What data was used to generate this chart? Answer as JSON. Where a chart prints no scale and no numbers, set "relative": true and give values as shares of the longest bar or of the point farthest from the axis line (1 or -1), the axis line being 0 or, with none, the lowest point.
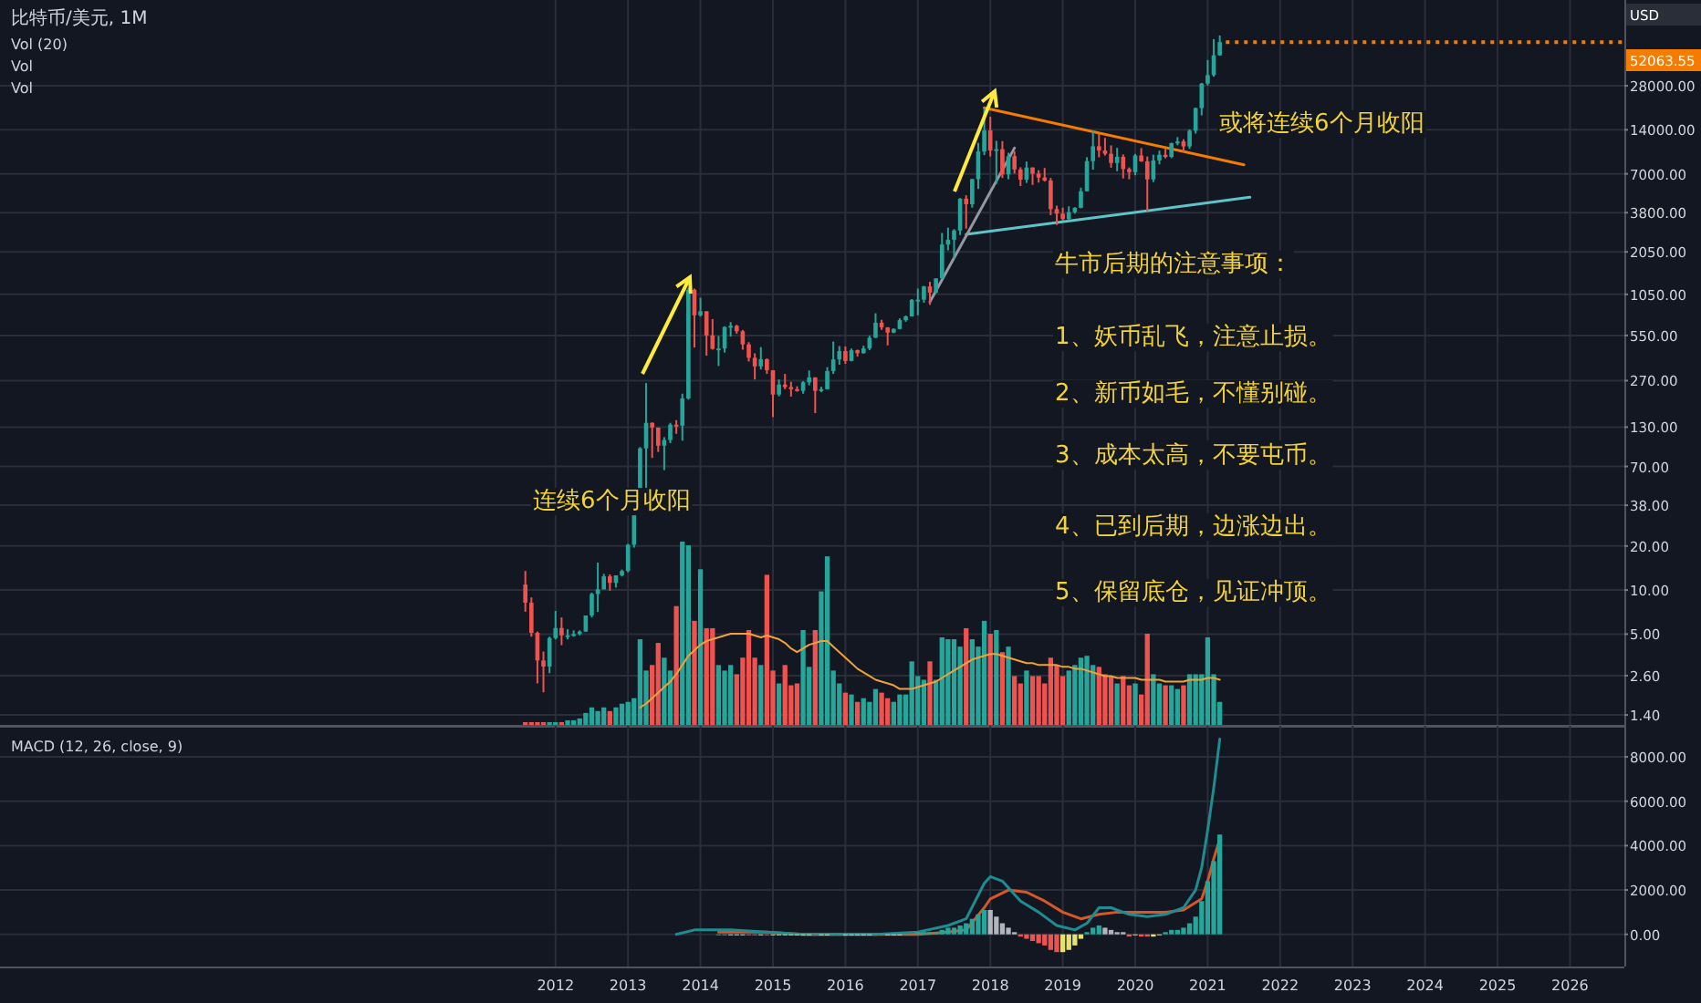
{
  "chart_data": [
    {
      "type": "candlestick",
      "title": "比特币/美元, 1M",
      "log": true,
      "grid": true,
      "tick_labels": "y",
      "xlim": [
        "2004-05",
        "2026-10"
      ],
      "xticks": [
        {
          "value": "2012",
          "label": null
        },
        {
          "value": "2013",
          "label": null
        },
        {
          "value": "2014",
          "label": null
        },
        {
          "value": "2015",
          "label": null
        },
        {
          "value": "2016",
          "label": null
        },
        {
          "value": "2017",
          "label": null
        },
        {
          "value": "2018",
          "label": null
        },
        {
          "value": "2019",
          "label": null
        },
        {
          "value": "2020",
          "label": null
        },
        {
          "value": "2021",
          "label": null
        },
        {
          "value": "2022",
          "label": null
        },
        {
          "value": "2023",
          "label": null
        },
        {
          "value": "2024",
          "label": null
        },
        {
          "value": "2025",
          "label": null
        },
        {
          "value": "2026",
          "label": null
        }
      ],
      "ylim": [
        1.18,
        108000
      ],
      "yticks": [
        {
          "value": 1.4,
          "label": "1.40"
        },
        {
          "value": 2.6,
          "label": "2.60"
        },
        {
          "value": 5,
          "label": "5.00"
        },
        {
          "value": 10,
          "label": "10.00"
        },
        {
          "value": 20,
          "label": "20.00"
        },
        {
          "value": 38,
          "label": "38.00"
        },
        {
          "value": 70,
          "label": "70.00"
        },
        {
          "value": 130,
          "label": "130.00"
        },
        {
          "value": 270,
          "label": "270.00"
        },
        {
          "value": 550,
          "label": "550.00"
        },
        {
          "value": 1050,
          "label": "1050.00"
        },
        {
          "value": 2050,
          "label": "2050.00"
        },
        {
          "value": 3800,
          "label": "3800.00"
        },
        {
          "value": 7000,
          "label": "7000.00"
        },
        {
          "value": 14000,
          "label": "14000.00"
        },
        {
          "value": 28000,
          "label": "28000.00"
        }
      ],
      "x": [
        "2011-08",
        "2011-09",
        "2011-10",
        "2011-11",
        "2011-12",
        "2012-01",
        "2012-02",
        "2012-03",
        "2012-04",
        "2012-05",
        "2012-06",
        "2012-07",
        "2012-08",
        "2012-09",
        "2012-10",
        "2012-11",
        "2012-12",
        "2013-01",
        "2013-02",
        "2013-03",
        "2013-04",
        "2013-05",
        "2013-06",
        "2013-07",
        "2013-08",
        "2013-09",
        "2013-10",
        "2013-11",
        "2013-12",
        "2014-01",
        "2014-02",
        "2014-03",
        "2014-04",
        "2014-05",
        "2014-06",
        "2014-07",
        "2014-08",
        "2014-09",
        "2014-10",
        "2014-11",
        "2014-12",
        "2015-01",
        "2015-02",
        "2015-03",
        "2015-04",
        "2015-05",
        "2015-06",
        "2015-07",
        "2015-08",
        "2015-09",
        "2015-10",
        "2015-11",
        "2015-12",
        "2016-01",
        "2016-02",
        "2016-03",
        "2016-04",
        "2016-05",
        "2016-06",
        "2016-07",
        "2016-08",
        "2016-09",
        "2016-10",
        "2016-11",
        "2016-12",
        "2017-01",
        "2017-02",
        "2017-03",
        "2017-04",
        "2017-05",
        "2017-06",
        "2017-07",
        "2017-08",
        "2017-09",
        "2017-10",
        "2017-11",
        "2017-12",
        "2018-01",
        "2018-02",
        "2018-03",
        "2018-04",
        "2018-05",
        "2018-06",
        "2018-07",
        "2018-08",
        "2018-09",
        "2018-10",
        "2018-11",
        "2018-12",
        "2019-01",
        "2019-02",
        "2019-03",
        "2019-04",
        "2019-05",
        "2019-06",
        "2019-07",
        "2019-08",
        "2019-09",
        "2019-10",
        "2019-11",
        "2019-12",
        "2020-01",
        "2020-02",
        "2020-03",
        "2020-04",
        "2020-05",
        "2020-06",
        "2020-07",
        "2020-08",
        "2020-09",
        "2020-10",
        "2020-11",
        "2020-12",
        "2021-01",
        "2021-02",
        "2021-03"
      ],
      "ohlc": [
        [
          10.9,
          13.5,
          7.1,
          8.2
        ],
        [
          8.2,
          8.9,
          4.8,
          5.1
        ],
        [
          5.1,
          5.2,
          2.3,
          3.3
        ],
        [
          3.3,
          3.8,
          2.0,
          3.0
        ],
        [
          3.0,
          4.8,
          2.7,
          4.7
        ],
        [
          4.7,
          7.2,
          4.6,
          5.5
        ],
        [
          5.5,
          6.5,
          4.2,
          4.9
        ],
        [
          4.9,
          5.4,
          4.6,
          4.9
        ],
        [
          4.9,
          5.3,
          4.8,
          5.0
        ],
        [
          5.0,
          5.3,
          4.9,
          5.2
        ],
        [
          5.2,
          6.7,
          5.2,
          6.7
        ],
        [
          6.7,
          9.6,
          6.5,
          9.4
        ],
        [
          9.4,
          15.4,
          7.1,
          10.1
        ],
        [
          10.1,
          12.9,
          10.1,
          12.4
        ],
        [
          12.4,
          12.8,
          9.9,
          11.2
        ],
        [
          11.2,
          12.6,
          10.4,
          12.6
        ],
        [
          12.6,
          13.8,
          12.4,
          13.5
        ],
        [
          13.5,
          20.7,
          13.2,
          20.4
        ],
        [
          20.4,
          33.5,
          19.5,
          33.4
        ],
        [
          33.4,
          95,
          33,
          93
        ],
        [
          93,
          260,
          50,
          139
        ],
        [
          139,
          140,
          80,
          129
        ],
        [
          129,
          129,
          88,
          97
        ],
        [
          97,
          111,
          66,
          106
        ],
        [
          106,
          139,
          101,
          135
        ],
        [
          135,
          145,
          117,
          133
        ],
        [
          133,
          220,
          105,
          204
        ],
        [
          204,
          1163,
          200,
          1127
        ],
        [
          1127,
          1150,
          455,
          755
        ],
        [
          755,
          995,
          740,
          805
        ],
        [
          805,
          805,
          400,
          550
        ],
        [
          550,
          712,
          440,
          445
        ],
        [
          445,
          545,
          340,
          448
        ],
        [
          448,
          635,
          420,
          628
        ],
        [
          628,
          678,
          540,
          640
        ],
        [
          640,
          650,
          565,
          587
        ],
        [
          587,
          600,
          440,
          478
        ],
        [
          478,
          495,
          365,
          387
        ],
        [
          387,
          415,
          275,
          338
        ],
        [
          338,
          458,
          322,
          378
        ],
        [
          378,
          383,
          300,
          318
        ],
        [
          318,
          318,
          152,
          217
        ],
        [
          217,
          275,
          211,
          254
        ],
        [
          254,
          300,
          236,
          244
        ],
        [
          244,
          265,
          210,
          236
        ],
        [
          236,
          247,
          227,
          230
        ],
        [
          230,
          268,
          220,
          263
        ],
        [
          263,
          317,
          251,
          284
        ],
        [
          284,
          285,
          162,
          230
        ],
        [
          230,
          245,
          225,
          236
        ],
        [
          236,
          334,
          235,
          314
        ],
        [
          314,
          500,
          300,
          377
        ],
        [
          377,
          466,
          347,
          430
        ],
        [
          430,
          462,
          352,
          368
        ],
        [
          368,
          448,
          366,
          436
        ],
        [
          436,
          440,
          394,
          416
        ],
        [
          416,
          468,
          413,
          448
        ],
        [
          448,
          548,
          436,
          530
        ],
        [
          530,
          780,
          529,
          672
        ],
        [
          672,
          704,
          600,
          624
        ],
        [
          624,
          627,
          470,
          575
        ],
        [
          575,
          615,
          570,
          609
        ],
        [
          609,
          720,
          605,
          700
        ],
        [
          700,
          753,
          682,
          742
        ],
        [
          742,
          975,
          740,
          963
        ],
        [
          963,
          1150,
          755,
          966
        ],
        [
          966,
          1200,
          920,
          1190
        ],
        [
          1190,
          1280,
          890,
          1080
        ],
        [
          1080,
          1350,
          1065,
          1350
        ],
        [
          1350,
          2760,
          1345,
          2300
        ],
        [
          2300,
          3000,
          2100,
          2480
        ],
        [
          2480,
          2930,
          1840,
          2870
        ],
        [
          2870,
          4780,
          2670,
          4735
        ],
        [
          4735,
          5000,
          2950,
          4340
        ],
        [
          4340,
          6470,
          4110,
          6440
        ],
        [
          6440,
          11400,
          5520,
          9950
        ],
        [
          9950,
          19666,
          9400,
          13860
        ],
        [
          13860,
          17180,
          9200,
          10110
        ],
        [
          10110,
          11780,
          5970,
          10320
        ],
        [
          10320,
          11710,
          6560,
          6940
        ],
        [
          6940,
          9760,
          6430,
          9240
        ],
        [
          9240,
          9990,
          7030,
          7500
        ],
        [
          7500,
          7760,
          5780,
          6390
        ],
        [
          6390,
          8500,
          6070,
          7730
        ],
        [
          7730,
          7760,
          5880,
          7010
        ],
        [
          7010,
          7410,
          6100,
          6610
        ],
        [
          6610,
          7680,
          6200,
          6300
        ],
        [
          6300,
          6560,
          3650,
          4020
        ],
        [
          4020,
          4240,
          3130,
          3740
        ],
        [
          3740,
          4110,
          3350,
          3440
        ],
        [
          3440,
          4200,
          3380,
          3830
        ],
        [
          3830,
          4140,
          3740,
          4100
        ],
        [
          4100,
          5630,
          4070,
          5320
        ],
        [
          5320,
          9090,
          5320,
          8550
        ],
        [
          8550,
          13880,
          7470,
          10800
        ],
        [
          10800,
          13200,
          9070,
          10100
        ],
        [
          10100,
          12330,
          9330,
          9600
        ],
        [
          9600,
          10950,
          7710,
          8300
        ],
        [
          8300,
          10540,
          7300,
          9150
        ],
        [
          9150,
          9510,
          6520,
          7550
        ],
        [
          7550,
          7740,
          6430,
          7190
        ],
        [
          7190,
          9580,
          6850,
          9350
        ],
        [
          9350,
          10500,
          8450,
          8520
        ],
        [
          8520,
          9190,
          3850,
          6410
        ],
        [
          6410,
          9470,
          6150,
          8630
        ],
        [
          8630,
          10080,
          8130,
          9450
        ],
        [
          9450,
          10380,
          8930,
          9140
        ],
        [
          9140,
          11440,
          8970,
          11350
        ],
        [
          11350,
          12470,
          10990,
          11650
        ],
        [
          11650,
          12070,
          9880,
          10780
        ],
        [
          10780,
          14100,
          10370,
          13800
        ],
        [
          13800,
          19870,
          13200,
          19700
        ],
        [
          19700,
          29300,
          17570,
          28990
        ],
        [
          28990,
          41950,
          28130,
          33110
        ],
        [
          33110,
          58350,
          32300,
          45240
        ],
        [
          45240,
          61780,
          44950,
          55700
        ]
      ],
      "colors": [
        "#ef5350",
        "#ef5350",
        "#ef5350",
        "#ef5350",
        "#26a69a",
        "#26a69a",
        "#ef5350",
        "#26a69a",
        "#26a69a",
        "#26a69a",
        "#26a69a",
        "#26a69a",
        "#26a69a",
        "#26a69a",
        "#ef5350",
        "#26a69a",
        "#26a69a",
        "#26a69a",
        "#26a69a",
        "#26a69a",
        "#26a69a",
        "#ef5350",
        "#ef5350",
        "#26a69a",
        "#26a69a",
        "#ef5350",
        "#26a69a",
        "#26a69a",
        "#ef5350",
        "#26a69a",
        "#ef5350",
        "#ef5350",
        "#26a69a",
        "#26a69a",
        "#26a69a",
        "#ef5350",
        "#ef5350",
        "#ef5350",
        "#ef5350",
        "#26a69a",
        "#ef5350",
        "#ef5350",
        "#26a69a",
        "#ef5350",
        "#ef5350",
        "#ef5350",
        "#26a69a",
        "#26a69a",
        "#ef5350",
        "#26a69a",
        "#26a69a",
        "#26a69a",
        "#26a69a",
        "#ef5350",
        "#26a69a",
        "#ef5350",
        "#26a69a",
        "#26a69a",
        "#26a69a",
        "#ef5350",
        "#ef5350",
        "#26a69a",
        "#26a69a",
        "#26a69a",
        "#26a69a",
        "#26a69a",
        "#26a69a",
        "#ef5350",
        "#26a69a",
        "#26a69a",
        "#26a69a",
        "#26a69a",
        "#26a69a",
        "#ef5350",
        "#26a69a",
        "#26a69a",
        "#26a69a",
        "#ef5350",
        "#26a69a",
        "#ef5350",
        "#26a69a",
        "#ef5350",
        "#ef5350",
        "#26a69a",
        "#ef5350",
        "#ef5350",
        "#ef5350",
        "#ef5350",
        "#ef5350",
        "#ef5350",
        "#26a69a",
        "#26a69a",
        "#26a69a",
        "#26a69a",
        "#26a69a",
        "#ef5350",
        "#ef5350",
        "#ef5350",
        "#26a69a",
        "#ef5350",
        "#ef5350",
        "#26a69a",
        "#ef5350",
        "#ef5350",
        "#26a69a",
        "#26a69a",
        "#ef5350",
        "#26a69a",
        "#26a69a",
        "#ef5350",
        "#26a69a",
        "#26a69a",
        "#26a69a",
        "#26a69a",
        "#26a69a",
        "#26a69a"
      ],
      "series": [
        {
          "type": "line",
          "color": "#f57c00",
          "x": [
            "2017-12",
            "2021-07"
          ],
          "values": [
            19800,
            8070
          ]
        },
        {
          "type": "line",
          "color": "#5fc4c8",
          "x": [
            "2017-09",
            "2021-08"
          ],
          "values": [
            2700,
            4840
          ]
        },
        {
          "type": "line",
          "color": "#9598a1",
          "x": [
            "2017-03",
            "2018-05"
          ],
          "values": [
            935,
            10500
          ]
        }
      ],
      "ref_lines": [
        {
          "axis": "y",
          "value": 55700,
          "color": "#f57c00",
          "line_style": "dotted"
        }
      ],
      "annotations": [
        "连续6个月收阳",
        "或将连续6个月收阳",
        "牛市后期的注意事项：",
        "1、妖币乱飞，注意止损。",
        "2、新币如毛，不懂别碰。",
        "3、成本太高，不要屯币。",
        "4、已到后期，边涨边出。",
        "5、保留底仓，见证冲顶。",
        "USD",
        "52063.55"
      ]
    },
    {
      "type": "bar",
      "relative": true,
      "tick_labels": false,
      "xlim": [
        "2004-05",
        "2026-10"
      ],
      "x": [
        "2011-08",
        "2011-09",
        "2011-10",
        "2011-11",
        "2011-12",
        "2012-01",
        "2012-02",
        "2012-03",
        "2012-04",
        "2012-05",
        "2012-06",
        "2012-07",
        "2012-08",
        "2012-09",
        "2012-10",
        "2012-11",
        "2012-12",
        "2013-01",
        "2013-02",
        "2013-03",
        "2013-04",
        "2013-05",
        "2013-06",
        "2013-07",
        "2013-08",
        "2013-09",
        "2013-10",
        "2013-11",
        "2013-12",
        "2014-01",
        "2014-02",
        "2014-03",
        "2014-04",
        "2014-05",
        "2014-06",
        "2014-07",
        "2014-08",
        "2014-09",
        "2014-10",
        "2014-11",
        "2014-12",
        "2015-01",
        "2015-02",
        "2015-03",
        "2015-04",
        "2015-05",
        "2015-06",
        "2015-07",
        "2015-08",
        "2015-09",
        "2015-10",
        "2015-11",
        "2015-12",
        "2016-01",
        "2016-02",
        "2016-03",
        "2016-04",
        "2016-05",
        "2016-06",
        "2016-07",
        "2016-08",
        "2016-09",
        "2016-10",
        "2016-11",
        "2016-12",
        "2017-01",
        "2017-02",
        "2017-03",
        "2017-04",
        "2017-05",
        "2017-06",
        "2017-07",
        "2017-08",
        "2017-09",
        "2017-10",
        "2017-11",
        "2017-12",
        "2018-01",
        "2018-02",
        "2018-03",
        "2018-04",
        "2018-05",
        "2018-06",
        "2018-07",
        "2018-08",
        "2018-09",
        "2018-10",
        "2018-11",
        "2018-12",
        "2019-01",
        "2019-02",
        "2019-03",
        "2019-04",
        "2019-05",
        "2019-06",
        "2019-07",
        "2019-08",
        "2019-09",
        "2019-10",
        "2019-11",
        "2019-12",
        "2020-01",
        "2020-02",
        "2020-03",
        "2020-04",
        "2020-05",
        "2020-06",
        "2020-07",
        "2020-08",
        "2020-09",
        "2020-10",
        "2020-11",
        "2020-12",
        "2021-01",
        "2021-02",
        "2021-03"
      ],
      "series": [
        {
          "type": "bar",
          "values": [
            0.02,
            0.02,
            0.02,
            0.02,
            0.02,
            0.02,
            0.02,
            0.03,
            0.03,
            0.04,
            0.07,
            0.1,
            0.08,
            0.1,
            0.08,
            0.1,
            0.12,
            0.13,
            0.15,
            0.47,
            0.3,
            0.33,
            0.45,
            0.37,
            0.3,
            0.65,
            1,
            0.98,
            0.57,
            0.85,
            0.53,
            0.53,
            0.33,
            0.3,
            0.33,
            0.28,
            0.37,
            0.52,
            0.37,
            0.33,
            0.82,
            0.3,
            0.23,
            0.33,
            0.22,
            0.23,
            0.52,
            0.32,
            0.52,
            0.73,
            0.92,
            0.3,
            0.23,
            0.18,
            0.17,
            0.13,
            0.15,
            0.13,
            0.2,
            0.18,
            0.15,
            0.13,
            0.17,
            0.17,
            0.35,
            0.27,
            0.25,
            0.35,
            0.25,
            0.48,
            0.47,
            0.47,
            0.43,
            0.53,
            0.47,
            0.43,
            0.57,
            0.5,
            0.52,
            0.4,
            0.43,
            0.27,
            0.23,
            0.3,
            0.27,
            0.27,
            0.23,
            0.37,
            0.33,
            0.27,
            0.3,
            0.33,
            0.37,
            0.38,
            0.33,
            0.32,
            0.28,
            0.27,
            0.23,
            0.27,
            0.22,
            0.23,
            0.17,
            0.5,
            0.28,
            0.23,
            0.22,
            0.22,
            0.2,
            0.22,
            0.28,
            0.28,
            0.28,
            0.48,
            0.28,
            0.13
          ],
          "colors": [
            "#ef5350",
            "#ef5350",
            "#ef5350",
            "#ef5350",
            "#26a69a",
            "#26a69a",
            "#ef5350",
            "#26a69a",
            "#26a69a",
            "#26a69a",
            "#26a69a",
            "#26a69a",
            "#26a69a",
            "#26a69a",
            "#ef5350",
            "#26a69a",
            "#26a69a",
            "#26a69a",
            "#26a69a",
            "#26a69a",
            "#26a69a",
            "#ef5350",
            "#ef5350",
            "#26a69a",
            "#26a69a",
            "#ef5350",
            "#26a69a",
            "#26a69a",
            "#ef5350",
            "#26a69a",
            "#ef5350",
            "#ef5350",
            "#26a69a",
            "#26a69a",
            "#26a69a",
            "#ef5350",
            "#ef5350",
            "#ef5350",
            "#ef5350",
            "#26a69a",
            "#ef5350",
            "#ef5350",
            "#26a69a",
            "#ef5350",
            "#ef5350",
            "#ef5350",
            "#26a69a",
            "#26a69a",
            "#ef5350",
            "#26a69a",
            "#26a69a",
            "#26a69a",
            "#26a69a",
            "#ef5350",
            "#26a69a",
            "#ef5350",
            "#26a69a",
            "#26a69a",
            "#26a69a",
            "#ef5350",
            "#ef5350",
            "#26a69a",
            "#26a69a",
            "#26a69a",
            "#26a69a",
            "#26a69a",
            "#26a69a",
            "#ef5350",
            "#26a69a",
            "#26a69a",
            "#26a69a",
            "#26a69a",
            "#26a69a",
            "#ef5350",
            "#26a69a",
            "#26a69a",
            "#26a69a",
            "#ef5350",
            "#26a69a",
            "#ef5350",
            "#26a69a",
            "#ef5350",
            "#ef5350",
            "#26a69a",
            "#ef5350",
            "#ef5350",
            "#ef5350",
            "#ef5350",
            "#ef5350",
            "#ef5350",
            "#26a69a",
            "#26a69a",
            "#26a69a",
            "#26a69a",
            "#26a69a",
            "#ef5350",
            "#ef5350",
            "#ef5350",
            "#26a69a",
            "#ef5350",
            "#ef5350",
            "#26a69a",
            "#ef5350",
            "#ef5350",
            "#26a69a",
            "#26a69a",
            "#ef5350",
            "#26a69a",
            "#26a69a",
            "#ef5350",
            "#26a69a",
            "#26a69a",
            "#26a69a",
            "#26a69a",
            "#26a69a",
            "#26a69a"
          ]
        },
        {
          "type": "line",
          "color": "#f0a13a",
          "values": [
            null,
            null,
            null,
            null,
            null,
            null,
            null,
            null,
            null,
            null,
            null,
            null,
            null,
            null,
            null,
            null,
            null,
            null,
            null,
            0.1,
            0.12,
            0.15,
            0.18,
            0.21,
            0.24,
            0.28,
            0.33,
            0.38,
            0.41,
            0.44,
            0.46,
            0.47,
            0.48,
            0.49,
            0.5,
            0.5,
            0.5,
            0.5,
            0.49,
            0.48,
            0.49,
            0.48,
            0.47,
            0.45,
            0.42,
            0.4,
            0.42,
            0.44,
            0.45,
            0.46,
            0.46,
            0.43,
            0.4,
            0.37,
            0.34,
            0.31,
            0.29,
            0.27,
            0.25,
            0.24,
            0.23,
            0.22,
            0.2,
            0.2,
            0.2,
            0.21,
            0.22,
            0.23,
            0.24,
            0.26,
            0.28,
            0.3,
            0.32,
            0.34,
            0.36,
            0.37,
            0.38,
            0.39,
            0.39,
            0.38,
            0.37,
            0.36,
            0.35,
            0.34,
            0.34,
            0.33,
            0.33,
            0.33,
            0.33,
            0.32,
            0.32,
            0.31,
            0.31,
            0.3,
            0.29,
            0.28,
            0.27,
            0.27,
            0.26,
            0.26,
            0.26,
            0.26,
            0.25,
            0.25,
            0.25,
            0.25,
            0.24,
            0.24,
            0.24,
            0.24,
            0.25,
            0.25,
            0.25,
            0.26,
            0.26,
            0.25
          ]
        }
      ],
      "annotations": [
        "Vol (20)",
        "Vol",
        "Vol"
      ]
    },
    {
      "type": "bar",
      "title": "MACD (12, 26, close, 9)",
      "grid": true,
      "xlim": [
        "2004-05",
        "2026-10"
      ],
      "xticks": [
        "2012",
        "2013",
        "2014",
        "2015",
        "2016",
        "2017",
        "2018",
        "2019",
        "2020",
        "2021",
        "2022",
        "2023",
        "2024",
        "2025",
        "2026"
      ],
      "ylim": [
        -1450,
        9400
      ],
      "yticks": [
        {
          "value": 0,
          "label": "0.00"
        },
        {
          "value": 2000,
          "label": "2000.00"
        },
        {
          "value": 4000,
          "label": "4000.00"
        },
        {
          "value": 6000,
          "label": "6000.00"
        },
        {
          "value": 8000,
          "label": "8000.00"
        }
      ],
      "series": [
        {
          "type": "bar",
          "x": [
            "2014-04",
            "2014-05",
            "2014-06",
            "2014-07",
            "2014-08",
            "2014-09",
            "2014-10",
            "2014-11",
            "2014-12",
            "2015-01",
            "2015-02",
            "2015-03",
            "2015-04",
            "2015-05",
            "2015-06",
            "2015-07",
            "2015-08",
            "2015-09",
            "2015-10",
            "2015-11",
            "2015-12",
            "2016-01",
            "2016-02",
            "2016-03",
            "2016-04",
            "2016-05",
            "2016-06",
            "2016-07",
            "2016-08",
            "2016-09",
            "2016-10",
            "2016-11",
            "2016-12",
            "2017-01",
            "2017-02",
            "2017-03",
            "2017-04",
            "2017-05",
            "2017-06",
            "2017-07",
            "2017-08",
            "2017-09",
            "2017-10",
            "2017-11",
            "2017-12",
            "2018-01",
            "2018-02",
            "2018-03",
            "2018-04",
            "2018-05",
            "2018-06",
            "2018-07",
            "2018-08",
            "2018-09",
            "2018-10",
            "2018-11",
            "2018-12",
            "2019-01",
            "2019-02",
            "2019-03",
            "2019-04",
            "2019-05",
            "2019-06",
            "2019-07",
            "2019-08",
            "2019-09",
            "2019-10",
            "2019-11",
            "2019-12",
            "2020-01",
            "2020-02",
            "2020-03",
            "2020-04",
            "2020-05",
            "2020-06",
            "2020-07",
            "2020-08",
            "2020-09",
            "2020-10",
            "2020-11",
            "2020-12",
            "2021-01",
            "2021-02",
            "2021-03"
          ],
          "values": [
            0,
            0,
            0,
            0,
            0,
            0,
            0,
            0,
            0,
            0,
            0,
            0,
            0,
            0,
            0,
            0,
            0,
            0,
            0,
            0,
            0,
            0,
            0,
            0,
            0,
            0,
            0,
            0,
            0,
            0,
            0,
            0,
            0,
            100,
            100,
            100,
            100,
            200,
            300,
            300,
            400,
            500,
            700,
            900,
            1100,
            1100,
            800,
            500,
            300,
            100,
            -100,
            -200,
            -300,
            -400,
            -500,
            -700,
            -800,
            -800,
            -700,
            -500,
            -200,
            100,
            300,
            400,
            300,
            200,
            100,
            100,
            -100,
            0,
            -100,
            -100,
            -100,
            0,
            100,
            200,
            200,
            300,
            500,
            800,
            1500,
            2400,
            3300,
            4500
          ],
          "colors": [
            "#26a69a",
            "#26a69a",
            "#b2dfdb",
            "#b2dfdb",
            "#b2dfdb",
            "#ef5350",
            "#ef5350",
            "#e6e26a",
            "#ef5350",
            "#e6e26a",
            "#e6e26a",
            "#e6e26a",
            "#e6e26a",
            "#e6e26a",
            "#e6e26a",
            "#e6e26a",
            "#ef5350",
            "#e6e26a",
            "#e6e26a",
            "#26a69a",
            "#26a69a",
            "#b2dfdb",
            "#b2dfdb",
            "#b2dfdb",
            "#b2dfdb",
            "#b2dfdb",
            "#26a69a",
            "#26a69a",
            "#b2dfdb",
            "#b2dfdb",
            "#b2dfdb",
            "#26a69a",
            "#26a69a",
            "#26a69a",
            "#26a69a",
            "#26a69a",
            "#26a69a",
            "#26a69a",
            "#26a69a",
            "#26a69a",
            "#26a69a",
            "#26a69a",
            "#26a69a",
            "#26a69a",
            "#26a69a",
            "#b2b5be",
            "#b2b5be",
            "#b2b5be",
            "#b2b5be",
            "#b2b5be",
            "#ef5350",
            "#ef5350",
            "#ef5350",
            "#ef5350",
            "#ef5350",
            "#ef5350",
            "#ef5350",
            "#e6e26a",
            "#e6e26a",
            "#e6e26a",
            "#e6e26a",
            "#26a69a",
            "#26a69a",
            "#26a69a",
            "#b2b5be",
            "#b2b5be",
            "#b2b5be",
            "#b2b5be",
            "#ef5350",
            "#e6e26a",
            "#ef5350",
            "#ef5350",
            "#e6e26a",
            "#e6e26a",
            "#26a69a",
            "#26a69a",
            "#26a69a",
            "#26a69a",
            "#26a69a",
            "#26a69a",
            "#26a69a",
            "#26a69a",
            "#26a69a",
            "#26a69a"
          ]
        },
        {
          "type": "line",
          "color": "#1e8c91",
          "x": [
            "2013-09",
            "2013-12",
            "2014-06",
            "2014-12",
            "2015-06",
            "2016-06",
            "2017-01",
            "2017-06",
            "2017-09",
            "2017-12",
            "2018-01",
            "2018-03",
            "2018-06",
            "2018-09",
            "2018-12",
            "2019-03",
            "2019-05",
            "2019-07",
            "2019-09",
            "2019-12",
            "2020-03",
            "2020-06",
            "2020-09",
            "2020-11",
            "2020-12",
            "2021-01",
            "2021-02",
            "2021-03"
          ],
          "values": [
            0,
            200,
            200,
            100,
            0,
            0,
            100,
            400,
            700,
            2300,
            2600,
            2400,
            1500,
            1000,
            400,
            200,
            500,
            1200,
            1200,
            900,
            800,
            900,
            1200,
            2000,
            3000,
            4700,
            6600,
            8800
          ]
        },
        {
          "type": "line",
          "color": "#d5582a",
          "x": [
            "2014-04",
            "2014-12",
            "2015-06",
            "2016-06",
            "2017-01",
            "2017-06",
            "2017-09",
            "2017-12",
            "2018-01",
            "2018-04",
            "2018-07",
            "2018-10",
            "2019-01",
            "2019-04",
            "2019-07",
            "2019-10",
            "2020-01",
            "2020-06",
            "2020-09",
            "2020-12",
            "2021-01",
            "2021-02",
            "2021-03"
          ],
          "values": [
            100,
            100,
            0,
            0,
            0,
            100,
            200,
            1200,
            1600,
            2000,
            1900,
            1500,
            1000,
            700,
            900,
            1000,
            1000,
            1000,
            1100,
            1600,
            2400,
            3400,
            4300
          ]
        }
      ]
    }
  ]
}
